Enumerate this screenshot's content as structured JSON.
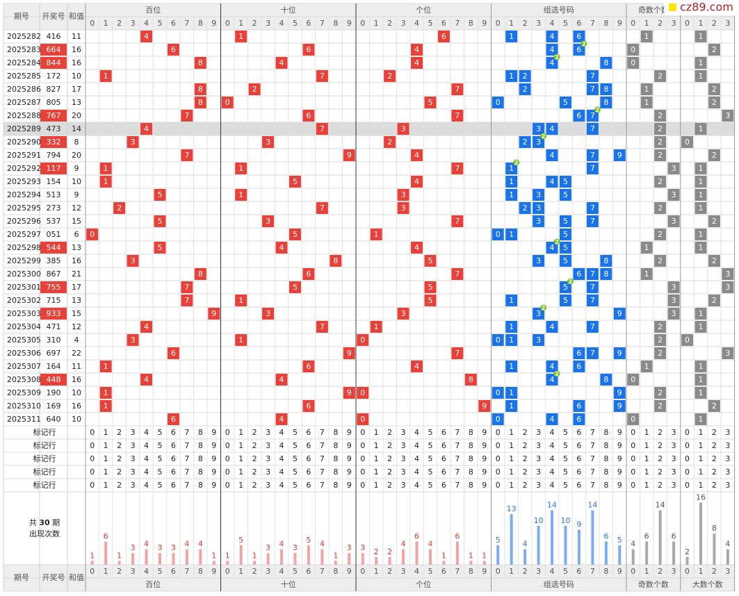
{
  "logo": "cz89.com",
  "header": {
    "issue": "期号",
    "number": "开奖号",
    "sum": "和值"
  },
  "groups": [
    {
      "name": "百位",
      "digits": [
        0,
        1,
        2,
        3,
        4,
        5,
        6,
        7,
        8,
        9
      ],
      "cell_color": "#e8413a",
      "bar_color": "#f3a3a3",
      "label_color": "#e03a30",
      "counts": [
        1,
        6,
        1,
        3,
        4,
        3,
        3,
        4,
        4,
        1
      ]
    },
    {
      "name": "十位",
      "digits": [
        0,
        1,
        2,
        3,
        4,
        5,
        6,
        7,
        8,
        9
      ],
      "cell_color": "#e8413a",
      "bar_color": "#f3a3a3",
      "label_color": "#e03a30",
      "counts": [
        1,
        5,
        1,
        3,
        4,
        3,
        5,
        4,
        1,
        3
      ]
    },
    {
      "name": "个位",
      "digits": [
        0,
        1,
        2,
        3,
        4,
        5,
        6,
        7,
        8,
        9
      ],
      "cell_color": "#e8413a",
      "bar_color": "#f3a3a3",
      "label_color": "#e03a30",
      "counts": [
        3,
        2,
        2,
        4,
        6,
        4,
        1,
        6,
        1,
        1
      ]
    },
    {
      "name": "组选号码",
      "digits": [
        0,
        1,
        2,
        3,
        4,
        5,
        6,
        7,
        8,
        9
      ],
      "cell_color": "#1a73e8",
      "bar_color": "#7aaef0",
      "label_color": "#2a78d0",
      "counts": [
        5,
        13,
        4,
        10,
        14,
        10,
        9,
        14,
        6,
        5
      ]
    },
    {
      "name": "奇数个数",
      "digits": [
        0,
        1,
        2,
        3
      ],
      "cell_color": "#8a8a8a",
      "bar_color": "#a8a8a8",
      "label_color": "#555555",
      "counts": [
        4,
        6,
        14,
        6
      ]
    },
    {
      "name": "大数个数",
      "digits": [
        0,
        1,
        2,
        3
      ],
      "cell_color": "#8a8a8a",
      "bar_color": "#a8a8a8",
      "label_color": "#555555",
      "counts": [
        2,
        16,
        8,
        4
      ]
    }
  ],
  "highlight_index": 7,
  "rows": [
    {
      "issue": "2025282",
      "number": "416",
      "sum": 11,
      "hundreds": 4,
      "tens": 1,
      "units": 6,
      "group": [
        1,
        4,
        6
      ],
      "odd": 1,
      "big": 1
    },
    {
      "issue": "2025283",
      "number": "664",
      "sum": 16,
      "hundreds": 6,
      "tens": 6,
      "units": 4,
      "group": [
        4,
        6
      ],
      "repeat": {
        "digit": 6,
        "count": 2
      },
      "odd": 0,
      "big": 2
    },
    {
      "issue": "2025284",
      "number": "844",
      "sum": 16,
      "hundreds": 8,
      "tens": 4,
      "units": 4,
      "group": [
        4,
        8
      ],
      "repeat": {
        "digit": 4,
        "count": 2
      },
      "odd": 0,
      "big": 1
    },
    {
      "issue": "2025285",
      "number": "172",
      "sum": 10,
      "hundreds": 1,
      "tens": 7,
      "units": 2,
      "group": [
        1,
        2,
        7
      ],
      "odd": 2,
      "big": 1
    },
    {
      "issue": "2025286",
      "number": "827",
      "sum": 17,
      "hundreds": 8,
      "tens": 2,
      "units": 7,
      "group": [
        2,
        7,
        8
      ],
      "odd": 1,
      "big": 2
    },
    {
      "issue": "2025287",
      "number": "805",
      "sum": 13,
      "hundreds": 8,
      "tens": 0,
      "units": 5,
      "group": [
        0,
        5,
        8
      ],
      "odd": 1,
      "big": 2
    },
    {
      "issue": "2025288",
      "number": "767",
      "sum": 20,
      "hundreds": 7,
      "tens": 6,
      "units": 7,
      "group": [
        6,
        7
      ],
      "repeat": {
        "digit": 7,
        "count": 2
      },
      "odd": 2,
      "big": 3
    },
    {
      "issue": "2025289",
      "number": "473",
      "sum": 14,
      "hundreds": 4,
      "tens": 7,
      "units": 3,
      "group": [
        3,
        4,
        7
      ],
      "odd": 2,
      "big": 1
    },
    {
      "issue": "2025290",
      "number": "332",
      "sum": 8,
      "hundreds": 3,
      "tens": 3,
      "units": 2,
      "group": [
        2,
        3
      ],
      "repeat": {
        "digit": 3,
        "count": 2
      },
      "odd": 2,
      "big": 0
    },
    {
      "issue": "2025291",
      "number": "794",
      "sum": 20,
      "hundreds": 7,
      "tens": 9,
      "units": 4,
      "group": [
        4,
        7,
        9
      ],
      "odd": 2,
      "big": 2
    },
    {
      "issue": "2025292",
      "number": "117",
      "sum": 9,
      "hundreds": 1,
      "tens": 1,
      "units": 7,
      "group": [
        1,
        7
      ],
      "repeat": {
        "digit": 1,
        "count": 2
      },
      "odd": 3,
      "big": 1
    },
    {
      "issue": "2025293",
      "number": "154",
      "sum": 10,
      "hundreds": 1,
      "tens": 5,
      "units": 4,
      "group": [
        1,
        4,
        5
      ],
      "odd": 2,
      "big": 1
    },
    {
      "issue": "2025294",
      "number": "513",
      "sum": 9,
      "hundreds": 5,
      "tens": 1,
      "units": 3,
      "group": [
        1,
        3,
        5
      ],
      "odd": 3,
      "big": 1
    },
    {
      "issue": "2025295",
      "number": "273",
      "sum": 12,
      "hundreds": 2,
      "tens": 7,
      "units": 3,
      "group": [
        2,
        3,
        7
      ],
      "odd": 2,
      "big": 1
    },
    {
      "issue": "2025296",
      "number": "537",
      "sum": 15,
      "hundreds": 5,
      "tens": 3,
      "units": 7,
      "group": [
        3,
        5,
        7
      ],
      "odd": 3,
      "big": 2
    },
    {
      "issue": "2025297",
      "number": "051",
      "sum": 6,
      "hundreds": 0,
      "tens": 5,
      "units": 1,
      "group": [
        0,
        1,
        5
      ],
      "odd": 2,
      "big": 1
    },
    {
      "issue": "2025298",
      "number": "544",
      "sum": 13,
      "hundreds": 5,
      "tens": 4,
      "units": 4,
      "group": [
        4,
        5
      ],
      "repeat": {
        "digit": 4,
        "count": 2
      },
      "odd": 1,
      "big": 1
    },
    {
      "issue": "2025299",
      "number": "385",
      "sum": 16,
      "hundreds": 3,
      "tens": 8,
      "units": 5,
      "group": [
        3,
        5,
        8
      ],
      "odd": 2,
      "big": 2
    },
    {
      "issue": "2025300",
      "number": "867",
      "sum": 21,
      "hundreds": 8,
      "tens": 6,
      "units": 7,
      "group": [
        6,
        7,
        8
      ],
      "odd": 1,
      "big": 3
    },
    {
      "issue": "2025301",
      "number": "755",
      "sum": 17,
      "hundreds": 7,
      "tens": 5,
      "units": 5,
      "group": [
        5,
        7
      ],
      "repeat": {
        "digit": 5,
        "count": 2
      },
      "odd": 3,
      "big": 3
    },
    {
      "issue": "2025302",
      "number": "715",
      "sum": 13,
      "hundreds": 7,
      "tens": 1,
      "units": 5,
      "group": [
        1,
        5,
        7
      ],
      "odd": 3,
      "big": 2
    },
    {
      "issue": "2025303",
      "number": "933",
      "sum": 15,
      "hundreds": 9,
      "tens": 3,
      "units": 3,
      "group": [
        3,
        9
      ],
      "repeat": {
        "digit": 3,
        "count": 2
      },
      "odd": 3,
      "big": 1
    },
    {
      "issue": "2025304",
      "number": "471",
      "sum": 12,
      "hundreds": 4,
      "tens": 7,
      "units": 1,
      "group": [
        1,
        4,
        7
      ],
      "odd": 2,
      "big": 1
    },
    {
      "issue": "2025305",
      "number": "310",
      "sum": 4,
      "hundreds": 3,
      "tens": 1,
      "units": 0,
      "group": [
        0,
        1,
        3
      ],
      "odd": 2,
      "big": 0
    },
    {
      "issue": "2025306",
      "number": "697",
      "sum": 22,
      "hundreds": 6,
      "tens": 9,
      "units": 7,
      "group": [
        6,
        7,
        9
      ],
      "odd": 2,
      "big": 3
    },
    {
      "issue": "2025307",
      "number": "164",
      "sum": 11,
      "hundreds": 1,
      "tens": 6,
      "units": 4,
      "group": [
        1,
        4,
        6
      ],
      "odd": 1,
      "big": 1
    },
    {
      "issue": "2025308",
      "number": "448",
      "sum": 16,
      "hundreds": 4,
      "tens": 4,
      "units": 8,
      "group": [
        4,
        8
      ],
      "repeat": {
        "digit": 4,
        "count": 2
      },
      "odd": 0,
      "big": 1
    },
    {
      "issue": "2025309",
      "number": "190",
      "sum": 10,
      "hundreds": 1,
      "tens": 9,
      "units": 0,
      "group": [
        0,
        1,
        9
      ],
      "odd": 2,
      "big": 1
    },
    {
      "issue": "2025310",
      "number": "169",
      "sum": 16,
      "hundreds": 1,
      "tens": 6,
      "units": 9,
      "group": [
        1,
        6,
        9
      ],
      "odd": 2,
      "big": 2
    },
    {
      "issue": "2025311",
      "number": "640",
      "sum": 10,
      "hundreds": 6,
      "tens": 4,
      "units": 0,
      "group": [
        0,
        4,
        6
      ],
      "odd": 0,
      "big": 1
    }
  ],
  "markers": [
    "标记行",
    "标记行",
    "标记行",
    "标记行",
    "标记行"
  ],
  "stats": {
    "prefix": "共",
    "periods": 30,
    "suffix": "期",
    "label": "出现次数"
  }
}
